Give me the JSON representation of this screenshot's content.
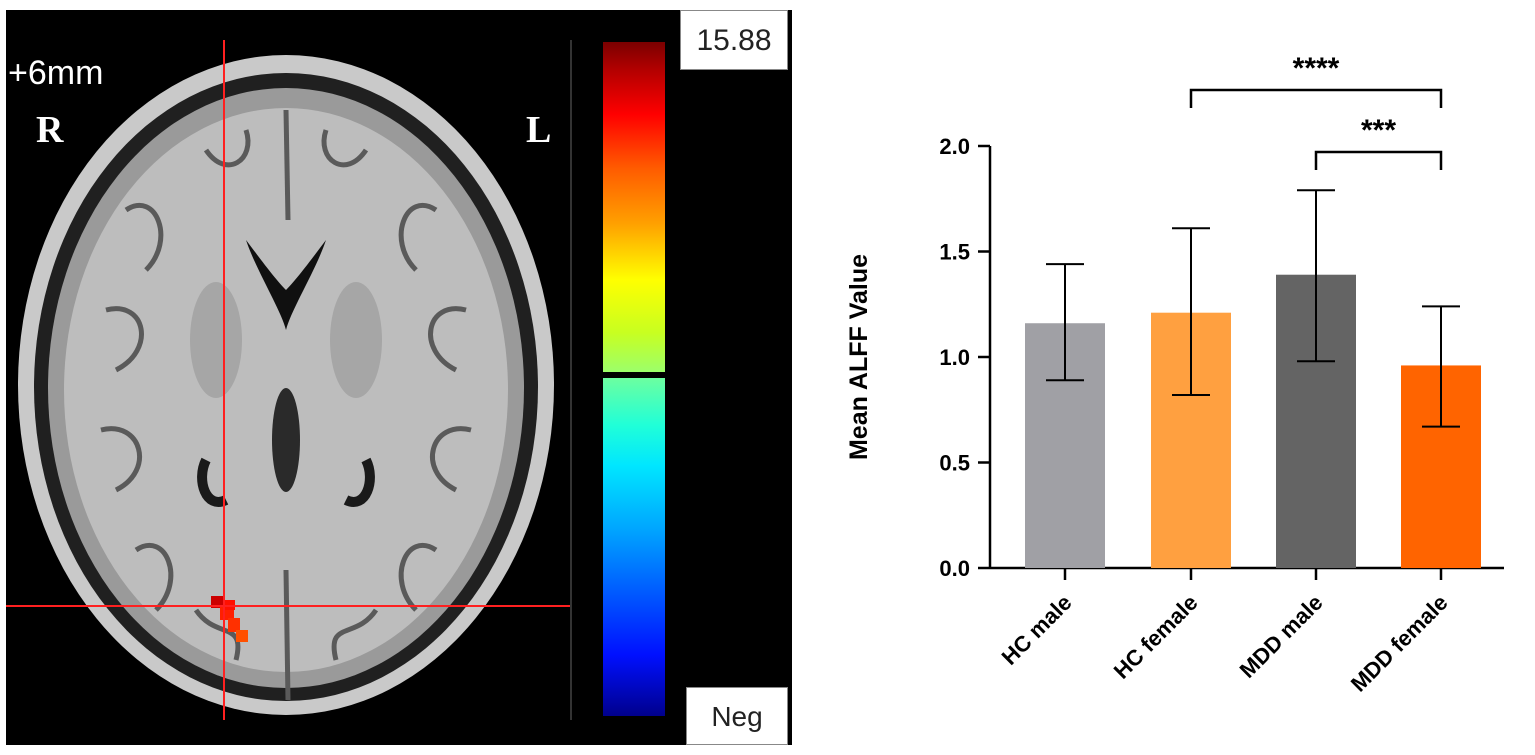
{
  "brain_image": {
    "slice_label": "+6mm",
    "orientation_right": "R",
    "orientation_left": "L",
    "colorbar_max": "15.88",
    "colorbar_min": "Neg",
    "colors": {
      "background": "#000000",
      "crosshair": "#ff2020",
      "cluster": "#ff1a00"
    }
  },
  "chart_data": {
    "type": "bar",
    "categories": [
      "HC male",
      "HC female",
      "MDD male",
      "MDD female"
    ],
    "values": [
      1.16,
      1.21,
      1.39,
      0.96
    ],
    "errors_upper": [
      1.44,
      1.61,
      1.79,
      1.24
    ],
    "errors_lower": [
      0.89,
      0.82,
      0.98,
      0.67
    ],
    "colors": [
      "#a0a0a5",
      "#ffa040",
      "#646464",
      "#ff6400"
    ],
    "ylabel": "Mean ALFF  Value",
    "xlabel": "",
    "ylim": [
      0,
      2.0
    ],
    "yticks": [
      "0.0",
      "0.5",
      "1.0",
      "1.5",
      "2.0"
    ],
    "significance": [
      {
        "from": "HC female",
        "to": "MDD female",
        "label": "****"
      },
      {
        "from": "MDD male",
        "to": "MDD female",
        "label": "***"
      }
    ]
  }
}
